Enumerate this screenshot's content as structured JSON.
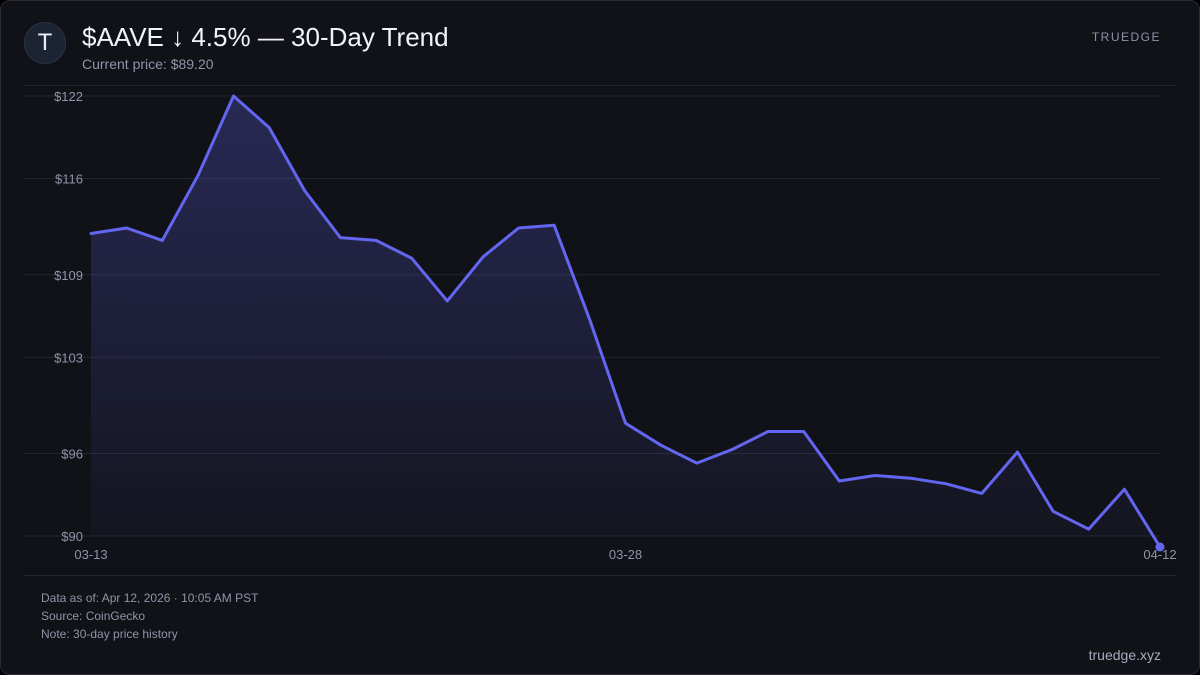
{
  "header": {
    "logo_letter": "T",
    "title": "$AAVE ↓ 4.5% — 30-Day Trend",
    "subtitle": "Current price: $89.20",
    "brand": "TRUEDGE"
  },
  "footer": {
    "data_as_of": "Data as of: Apr 12, 2026 · 10:05 AM PST",
    "source": "Source: CoinGecko",
    "note": "Note: 30-day price history",
    "site": "truedge.xyz"
  },
  "colors": {
    "line": "#6366f1",
    "grid": "#23252e",
    "background": "#111218"
  },
  "chart_data": {
    "type": "area",
    "title": "$AAVE ↓ 4.5% — 30-Day Trend",
    "ylim": [
      90,
      122
    ],
    "y_ticks": [
      90,
      96,
      103,
      109,
      116,
      122
    ],
    "y_tick_labels": [
      "$90",
      "$96",
      "$103",
      "$109",
      "$116",
      "$122"
    ],
    "x_tick_labels": [
      {
        "index": 0,
        "label": "03-13"
      },
      {
        "index": 15,
        "label": "03-28"
      },
      {
        "index": 30,
        "label": "04-12"
      }
    ],
    "series": [
      {
        "name": "AAVE price",
        "values": [
          112.0,
          112.4,
          111.5,
          116.2,
          122.0,
          119.7,
          115.1,
          111.7,
          111.5,
          110.2,
          107.1,
          110.3,
          112.4,
          112.6,
          105.7,
          98.2,
          96.6,
          95.3,
          96.3,
          97.6,
          97.6,
          94.0,
          94.4,
          94.2,
          93.8,
          93.1,
          96.1,
          91.8,
          90.5,
          93.4,
          89.2
        ]
      }
    ],
    "grid": true
  }
}
